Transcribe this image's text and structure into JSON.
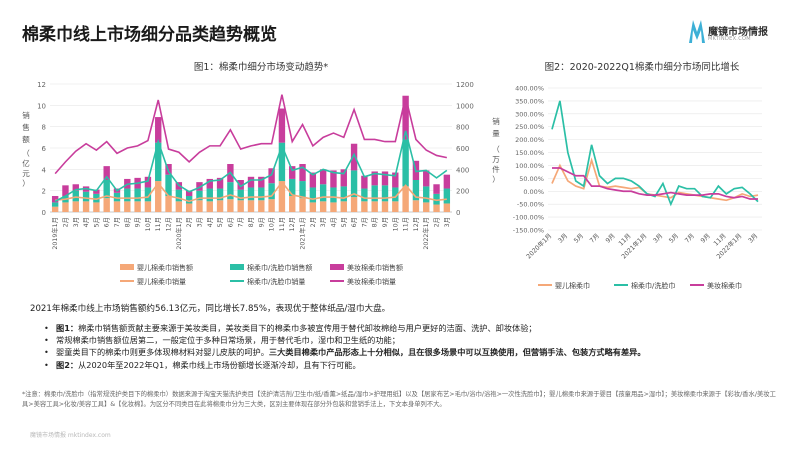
{
  "page": {
    "title": "棉柔巾线上市场细分品类趋势概览",
    "brand": "魔镜市场情报",
    "brand_sub": "MKTINDEX.COM",
    "summary": "2021年棉柔巾线上市场销售额约56.13亿元，同比增长7.85%，表现优于整体纸品/湿巾大盘。",
    "bullets": [
      {
        "bold": "图1：",
        "text": "棉柔巾销售额贡献主要来源于美妆类目，美妆类目下的棉柔巾多被宣传用于替代卸妆棉给与用户更好的洁面、洗护、卸妆体验；"
      },
      {
        "bold": "",
        "text": "常规棉柔巾销售额位居第二，一般定位于多种日常场景，用于替代毛巾，湿巾和卫生纸的功能；"
      },
      {
        "bold": "",
        "text": "婴童类目下的棉柔巾则更多体现棉材料对婴儿皮肤的呵护。",
        "bold_tail": "三大类目棉柔巾产品形态上十分相似，且在很多场景中可以互换使用，但营销手法、包装方式略有差异。"
      },
      {
        "bold": "图2：",
        "text": "从2020年至2022年Q1，棉柔巾线上市场份额增长逐渐冷却，且有下行可能。"
      }
    ],
    "note": "*注意：棉柔巾/洗脸巾（指常规洗护类目下的棉柔巾）数据来源于淘宝天猫洗护类目【洗护清洁剂/卫生巾/纸/香薰>纸品/湿巾>护理用纸】以及【居家布艺>毛巾/浴巾/浴袍>一次性洗脸巾】；婴儿棉柔巾来源于婴目【孩童用品>湿巾】；美妆棉柔巾来源于【彩妆/香水/美妆工具>美容工具>化妆/美容工具】&【化妆棉】。为区分不同类目在此将棉柔巾分为三大类，区别主要体现在部分外包装和营销手法上，下文本身单列不大。",
    "footer": "魔镜市场情报 mktindex.com"
  },
  "colors": {
    "baby": "#f5a878",
    "regular": "#2bbfa6",
    "beauty": "#c83d9c",
    "axis": "#bdbdbd",
    "grid": "#e6e6e6"
  },
  "chart_data": [
    {
      "type": "bar",
      "title": "图1：棉柔巾细分市场变动趋势*",
      "ylabel": "销售额（亿元）",
      "y2label": "销量（万件）",
      "ylim": [
        0,
        12
      ],
      "y2lim": [
        0,
        1200
      ],
      "yticks": [
        0,
        2,
        4,
        6,
        8,
        10,
        12
      ],
      "y2ticks": [
        0,
        200,
        400,
        600,
        800,
        1000,
        1200
      ],
      "tick_labels": [
        "2019年1月",
        "2月",
        "3月",
        "4月",
        "5月",
        "6月",
        "7月",
        "8月",
        "9月",
        "10月",
        "11月",
        "12月",
        "2020年1月",
        "2月",
        "3月",
        "4月",
        "5月",
        "6月",
        "7月",
        "8月",
        "9月",
        "10月",
        "11月",
        "12月",
        "2021年1月",
        "2月",
        "3月",
        "4月",
        "5月",
        "6月",
        "7月",
        "8月",
        "9月",
        "10月",
        "11月",
        "12月",
        "2022年1月",
        "2月",
        "3月"
      ],
      "series": [
        {
          "name": "婴儿棉柔巾销售额",
          "kind": "bar",
          "values": [
            0.5,
            0.9,
            1.0,
            1.0,
            0.9,
            1.3,
            1.0,
            1.0,
            1.0,
            1.0,
            2.9,
            1.5,
            1.0,
            0.8,
            1.1,
            1.0,
            1.1,
            1.2,
            1.1,
            1.1,
            1.1,
            1.2,
            2.9,
            1.5,
            1.3,
            0.9,
            1.0,
            0.9,
            1.0,
            1.4,
            1.0,
            1.0,
            1.0,
            1.0,
            2.4,
            1.1,
            0.9,
            0.7,
            0.8
          ]
        },
        {
          "name": "棉柔巾/洗脸巾销售额",
          "kind": "bar",
          "values": [
            0.4,
            0.6,
            1.0,
            0.9,
            0.8,
            1.7,
            0.8,
            1.2,
            1.2,
            1.3,
            3.6,
            2.0,
            1.1,
            0.7,
            0.9,
            1.2,
            1.1,
            1.6,
            1.0,
            1.2,
            1.2,
            1.5,
            3.6,
            1.6,
            1.6,
            1.4,
            1.6,
            1.4,
            1.4,
            2.5,
            1.2,
            1.5,
            1.5,
            1.3,
            4.4,
            1.9,
            1.5,
            1.0,
            1.4
          ]
        },
        {
          "name": "美妆棉柔巾销售额",
          "kind": "bar",
          "values": [
            0.6,
            1.0,
            0.6,
            0.5,
            0.4,
            1.3,
            0.4,
            0.9,
            1.0,
            1.0,
            2.4,
            1.0,
            0.7,
            0.5,
            0.8,
            0.9,
            1.0,
            1.7,
            0.9,
            1.0,
            1.0,
            1.4,
            3.2,
            1.2,
            1.6,
            1.4,
            1.4,
            1.6,
            1.6,
            2.5,
            1.2,
            1.3,
            1.3,
            1.4,
            4.1,
            1.8,
            1.5,
            0.9,
            1.3
          ]
        },
        {
          "name": "婴儿棉柔巾销量",
          "kind": "line",
          "axis": "right",
          "values": [
            110,
            120,
            140,
            130,
            120,
            150,
            130,
            130,
            130,
            140,
            270,
            150,
            130,
            100,
            130,
            130,
            130,
            160,
            130,
            140,
            140,
            150,
            280,
            160,
            140,
            120,
            140,
            140,
            130,
            170,
            130,
            130,
            130,
            140,
            250,
            140,
            130,
            110,
            120
          ]
        },
        {
          "name": "棉柔巾/洗脸巾销量",
          "kind": "line",
          "axis": "right",
          "values": [
            100,
            150,
            210,
            220,
            200,
            330,
            200,
            260,
            270,
            290,
            660,
            380,
            250,
            190,
            230,
            290,
            300,
            370,
            240,
            300,
            300,
            350,
            620,
            390,
            420,
            350,
            400,
            370,
            360,
            540,
            330,
            360,
            350,
            340,
            760,
            380,
            390,
            320,
            390
          ]
        },
        {
          "name": "美妆棉柔巾销量",
          "kind": "line",
          "axis": "right",
          "values": [
            360,
            470,
            570,
            640,
            580,
            660,
            550,
            600,
            620,
            670,
            1050,
            590,
            560,
            470,
            560,
            620,
            620,
            770,
            590,
            620,
            640,
            640,
            1100,
            660,
            820,
            620,
            700,
            740,
            700,
            960,
            680,
            680,
            660,
            660,
            1080,
            680,
            580,
            530,
            510
          ]
        }
      ]
    },
    {
      "type": "line",
      "title": "图2：2020-2022Q1棉柔巾细分市场同比增长",
      "ylim": [
        -150,
        400
      ],
      "yticks": [
        "400.00%",
        "350.00%",
        "300.00%",
        "250.00%",
        "200.00%",
        "150.00%",
        "100.00%",
        "50.00%",
        "0.00%",
        "-50.00%",
        "-100.00%",
        "-150.00%"
      ],
      "tick_labels": [
        "2020年1月",
        "3月",
        "5月",
        "7月",
        "9月",
        "11月",
        "2021年1月",
        "3月",
        "5月",
        "7月",
        "9月",
        "11月",
        "2022年1月",
        "3月"
      ],
      "series": [
        {
          "name": "婴儿棉柔巾",
          "values": [
            30,
            100,
            40,
            20,
            10,
            120,
            20,
            15,
            20,
            15,
            10,
            15,
            -10,
            -15,
            -20,
            -25,
            -5,
            -10,
            -15,
            -20,
            -25,
            -30,
            -35,
            -25,
            -10,
            -20,
            -15
          ]
        },
        {
          "name": "棉柔巾/洗脸巾",
          "values": [
            240,
            350,
            150,
            40,
            20,
            180,
            60,
            30,
            50,
            50,
            40,
            20,
            -10,
            -20,
            30,
            -50,
            20,
            10,
            10,
            -20,
            -25,
            20,
            -10,
            10,
            15,
            -10,
            -40
          ]
        },
        {
          "name": "美妆棉柔巾",
          "values": [
            90,
            90,
            75,
            60,
            60,
            20,
            20,
            10,
            5,
            0,
            0,
            -10,
            -15,
            -15,
            -10,
            -5,
            -10,
            -15,
            -15,
            -15,
            -10,
            -10,
            -20,
            -25,
            -20,
            -30,
            -30
          ]
        }
      ]
    }
  ]
}
